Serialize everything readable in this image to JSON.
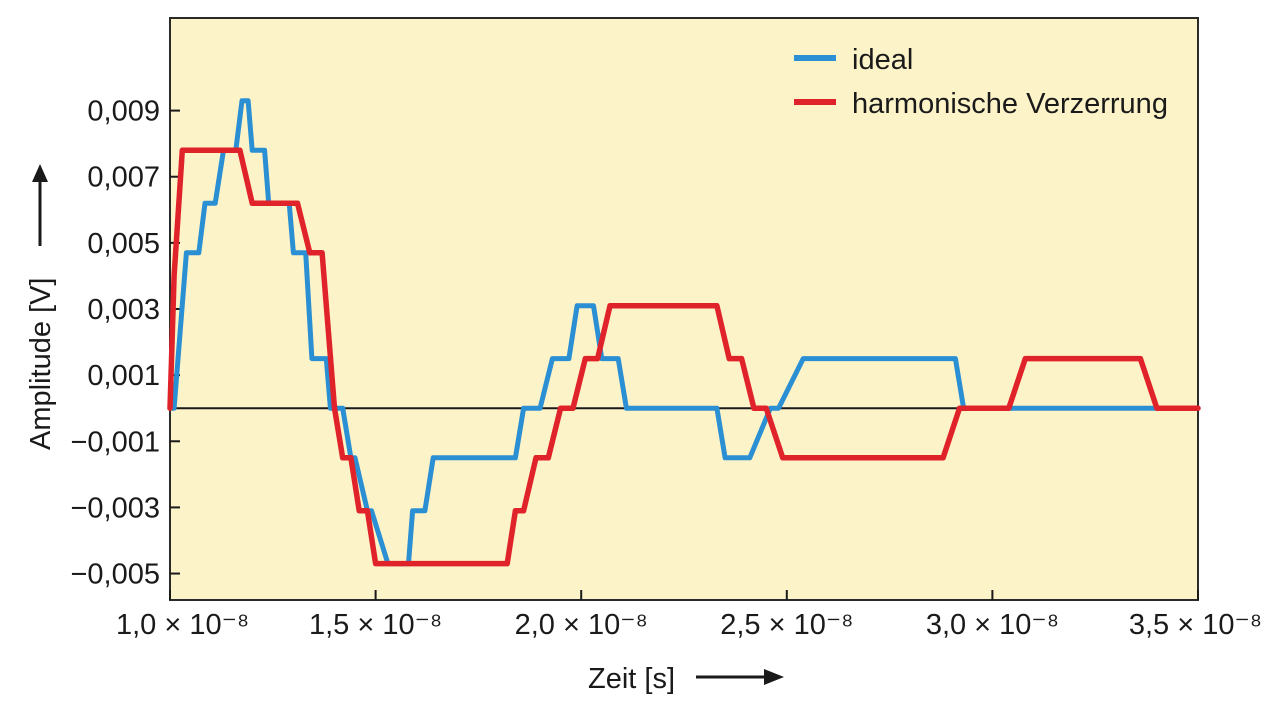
{
  "chart_data": {
    "type": "line",
    "xlabel": "Zeit [s]",
    "ylabel": "Amplitude [V]",
    "xlim": [
      1e-08,
      3.5e-08
    ],
    "ylim": [
      -0.0058,
      0.0118
    ],
    "x_ticks": [
      {
        "value": 1e-08,
        "label": "1,0 × 10⁻⁸"
      },
      {
        "value": 1.5e-08,
        "label": "1,5 × 10⁻⁸"
      },
      {
        "value": 2e-08,
        "label": "2,0 × 10⁻⁸"
      },
      {
        "value": 2.5e-08,
        "label": "2,5 × 10⁻⁸"
      },
      {
        "value": 3e-08,
        "label": "3,0 × 10⁻⁸"
      },
      {
        "value": 3.5e-08,
        "label": "3,5 × 10⁻⁸"
      }
    ],
    "y_ticks": [
      {
        "value": 0.009,
        "label": "0,009"
      },
      {
        "value": 0.007,
        "label": "0,007"
      },
      {
        "value": 0.005,
        "label": "0,005"
      },
      {
        "value": 0.003,
        "label": "0,003"
      },
      {
        "value": 0.001,
        "label": "0,001"
      },
      {
        "value": -0.001,
        "label": "−0,001"
      },
      {
        "value": -0.003,
        "label": "−0,003"
      },
      {
        "value": -0.005,
        "label": "−0,005"
      }
    ],
    "zero_line": 0,
    "grid": false,
    "legend_position": "top-right",
    "background": "#fdf3c8",
    "series": [
      {
        "name": "ideal",
        "color": "#2b8fd3",
        "x": [
          1e-08,
          1.01e-08,
          1.04e-08,
          1.07e-08,
          1.085e-08,
          1.11e-08,
          1.13e-08,
          1.16e-08,
          1.175e-08,
          1.19e-08,
          1.2e-08,
          1.21e-08,
          1.23e-08,
          1.24e-08,
          1.29e-08,
          1.3e-08,
          1.33e-08,
          1.345e-08,
          1.38e-08,
          1.39e-08,
          1.42e-08,
          1.44e-08,
          1.45e-08,
          1.48e-08,
          1.49e-08,
          1.53e-08,
          1.545e-08,
          1.58e-08,
          1.59e-08,
          1.62e-08,
          1.64e-08,
          1.84e-08,
          1.86e-08,
          1.9e-08,
          1.93e-08,
          1.97e-08,
          1.99e-08,
          2.03e-08,
          2.05e-08,
          2.09e-08,
          2.11e-08,
          2.33e-08,
          2.35e-08,
          2.39e-08,
          2.41e-08,
          2.46e-08,
          2.48e-08,
          2.54e-08,
          2.56e-08,
          2.91e-08,
          2.93e-08,
          3.09e-08,
          3.11e-08,
          3.36e-08,
          3.38e-08,
          3.5e-08
        ],
        "y": [
          0.0,
          0.0,
          0.0047,
          0.0047,
          0.0062,
          0.0062,
          0.0078,
          0.0078,
          0.0093,
          0.0093,
          0.0078,
          0.0078,
          0.0078,
          0.0062,
          0.0062,
          0.0047,
          0.0047,
          0.0015,
          0.0015,
          0.0,
          0.0,
          -0.0015,
          -0.0015,
          -0.0031,
          -0.0031,
          -0.0047,
          -0.0047,
          -0.0047,
          -0.0031,
          -0.0031,
          -0.0015,
          -0.0015,
          0.0,
          0.0,
          0.0015,
          0.0015,
          0.0031,
          0.0031,
          0.0015,
          0.0015,
          0.0,
          0.0,
          -0.0015,
          -0.0015,
          -0.0015,
          0.0,
          0.0,
          0.0015,
          0.0015,
          0.0015,
          0.0,
          0.0,
          0.0,
          0.0,
          0.0,
          0.0
        ]
      },
      {
        "name": "harmonische Verzerrung",
        "color": "#e0232b",
        "x": [
          1e-08,
          1.01e-08,
          1.03e-08,
          1.06e-08,
          1.07e-08,
          1.08e-08,
          1.1e-08,
          1.115e-08,
          1.13e-08,
          1.17e-08,
          1.2e-08,
          1.23e-08,
          1.27e-08,
          1.31e-08,
          1.34e-08,
          1.37e-08,
          1.4e-08,
          1.42e-08,
          1.44e-08,
          1.46e-08,
          1.48e-08,
          1.5e-08,
          1.52e-08,
          1.56e-08,
          1.58e-08,
          1.6e-08,
          1.62e-08,
          1.64e-08,
          1.82e-08,
          1.84e-08,
          1.86e-08,
          1.89e-08,
          1.92e-08,
          1.95e-08,
          1.98e-08,
          2.01e-08,
          2.04e-08,
          2.07e-08,
          2.1e-08,
          2.13e-08,
          2.17e-08,
          2.2e-08,
          2.23e-08,
          2.27e-08,
          2.3e-08,
          2.33e-08,
          2.36e-08,
          2.39e-08,
          2.42e-08,
          2.45e-08,
          2.49e-08,
          2.52e-08,
          2.56e-08,
          2.6e-08,
          2.64e-08,
          2.68e-08,
          2.72e-08,
          2.76e-08,
          2.8e-08,
          2.84e-08,
          2.88e-08,
          2.92e-08,
          2.96e-08,
          3e-08,
          3.04e-08,
          3.08e-08,
          3.12e-08,
          3.16e-08,
          3.2e-08,
          3.24e-08,
          3.28e-08,
          3.32e-08,
          3.36e-08,
          3.4e-08,
          3.44e-08,
          3.48e-08,
          3.5e-08
        ],
        "y": [
          0.0,
          0.004,
          0.0078,
          0.0078,
          0.0078,
          0.0078,
          0.0078,
          0.0078,
          0.0078,
          0.0078,
          0.0062,
          0.0062,
          0.0062,
          0.0062,
          0.0047,
          0.0047,
          0.0,
          -0.0015,
          -0.0015,
          -0.0031,
          -0.0031,
          -0.0047,
          -0.0047,
          -0.0047,
          -0.0047,
          -0.0047,
          -0.0047,
          -0.0047,
          -0.0047,
          -0.0031,
          -0.0031,
          -0.0015,
          -0.0015,
          0.0,
          0.0,
          0.0015,
          0.0015,
          0.0031,
          0.0031,
          0.0031,
          0.0031,
          0.0031,
          0.0031,
          0.0031,
          0.0031,
          0.0031,
          0.0015,
          0.0015,
          0.0,
          0.0,
          -0.0015,
          -0.0015,
          -0.0015,
          -0.0015,
          -0.0015,
          -0.0015,
          -0.0015,
          -0.0015,
          -0.0015,
          -0.0015,
          -0.0015,
          0.0,
          0.0,
          0.0,
          0.0,
          0.0015,
          0.0015,
          0.0015,
          0.0015,
          0.0015,
          0.0015,
          0.0015,
          0.0015,
          0.0,
          0.0,
          0.0,
          0.0
        ]
      }
    ]
  }
}
